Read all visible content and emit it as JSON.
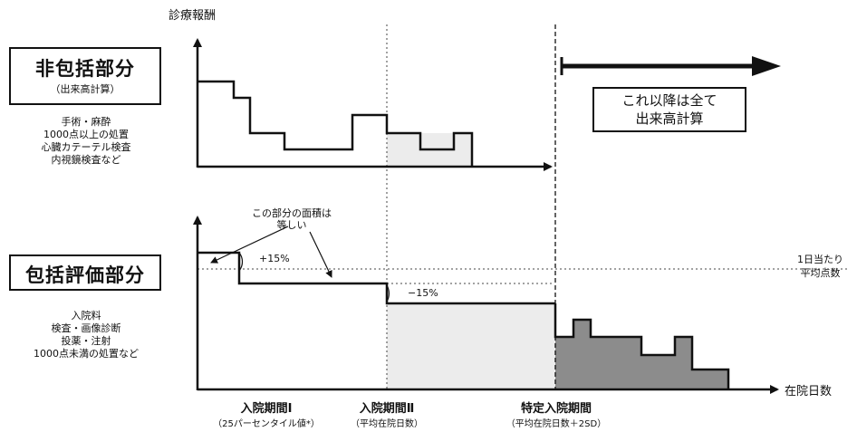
{
  "y_axis_label": "診療報酬",
  "x_axis_label": "在院日数",
  "non_bundled": {
    "title": "非包括部分",
    "subtitle": "（出来高計算）",
    "items": [
      "手術・麻酔",
      "1000点以上の処置",
      "心臓カテーテル検査",
      "内視鏡検査など"
    ]
  },
  "bundled": {
    "title": "包括評価部分",
    "items": [
      "入院料",
      "検査・画像診断",
      "投薬・注射",
      "1000点未満の処置など"
    ]
  },
  "after_note": [
    "これ以降は全て",
    "出来高計算"
  ],
  "area_note": [
    "この部分の面積は",
    "等しい"
  ],
  "plus_pct": "+15%",
  "minus_pct": "−15%",
  "avg_label": [
    "1日当たり",
    "平均点数"
  ],
  "periods": [
    {
      "label": "入院期間Ⅰ",
      "sub": "（25パーセンタイル値*）"
    },
    {
      "label": "入院期間Ⅱ",
      "sub": "（平均在院日数）"
    },
    {
      "label": "特定入院期間",
      "sub": "（平均在院日数＋2SD）"
    }
  ],
  "colors": {
    "line": "#111111",
    "light_fill": "#ececec",
    "dark_fill": "#8c8c8c"
  }
}
